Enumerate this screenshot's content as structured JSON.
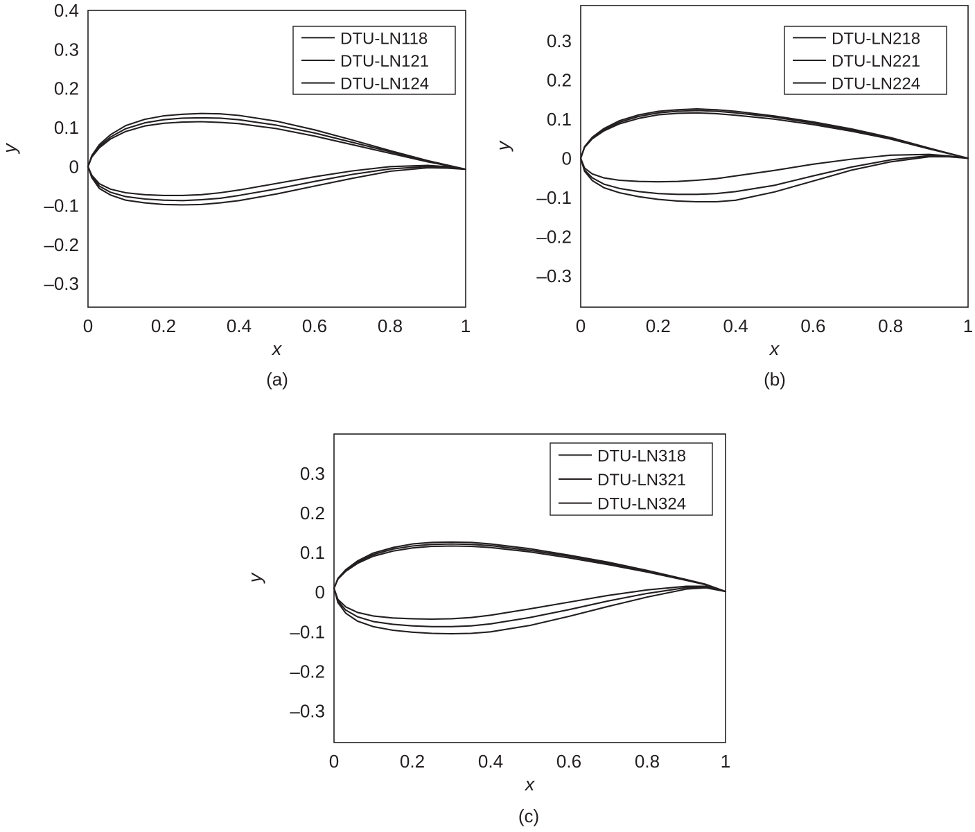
{
  "chart_data": [
    {
      "type": "line",
      "panel": "(a)",
      "xlabel": "x",
      "ylabel": "y",
      "xlim": [
        0,
        1
      ],
      "ylim": [
        -0.36,
        0.4
      ],
      "xticks": [
        "0",
        "0.2",
        "0.4",
        "0.6",
        "0.8",
        "1"
      ],
      "yticks": [
        "0.4",
        "0.3",
        "0.2",
        "0.1",
        "0",
        "–0.1",
        "–0.2",
        "–0.3"
      ],
      "legend_position": "top-right",
      "series": [
        {
          "name": "DTU-LN118",
          "x": [
            0,
            0.01,
            0.03,
            0.06,
            0.1,
            0.15,
            0.2,
            0.25,
            0.3,
            0.35,
            0.4,
            0.5,
            0.6,
            0.7,
            0.8,
            0.9,
            0.95,
            1
          ],
          "upper": [
            0,
            0.024,
            0.048,
            0.071,
            0.09,
            0.104,
            0.111,
            0.114,
            0.115,
            0.113,
            0.11,
            0.097,
            0.078,
            0.056,
            0.034,
            0.012,
            0.003,
            -0.007
          ],
          "lower": [
            0,
            -0.022,
            -0.044,
            -0.058,
            -0.067,
            -0.072,
            -0.074,
            -0.074,
            -0.072,
            -0.067,
            -0.06,
            -0.043,
            -0.026,
            -0.011,
            0.0,
            0.003,
            0.0,
            -0.007
          ]
        },
        {
          "name": "DTU-LN121",
          "x": [
            0,
            0.01,
            0.03,
            0.06,
            0.1,
            0.15,
            0.2,
            0.25,
            0.3,
            0.35,
            0.4,
            0.5,
            0.6,
            0.7,
            0.8,
            0.9,
            0.95,
            1
          ],
          "upper": [
            0,
            0.026,
            0.052,
            0.076,
            0.097,
            0.112,
            0.12,
            0.124,
            0.125,
            0.124,
            0.12,
            0.106,
            0.086,
            0.062,
            0.038,
            0.014,
            0.004,
            -0.007
          ],
          "lower": [
            0,
            -0.025,
            -0.05,
            -0.066,
            -0.077,
            -0.083,
            -0.086,
            -0.087,
            -0.085,
            -0.081,
            -0.074,
            -0.057,
            -0.038,
            -0.02,
            -0.006,
            0.0,
            -0.002,
            -0.007
          ]
        },
        {
          "name": "DTU-LN124",
          "x": [
            0,
            0.01,
            0.03,
            0.06,
            0.1,
            0.15,
            0.2,
            0.25,
            0.3,
            0.35,
            0.4,
            0.5,
            0.6,
            0.7,
            0.8,
            0.9,
            0.95,
            1
          ],
          "upper": [
            0,
            0.028,
            0.056,
            0.082,
            0.105,
            0.121,
            0.13,
            0.134,
            0.136,
            0.135,
            0.131,
            0.116,
            0.094,
            0.068,
            0.041,
            0.015,
            0.004,
            -0.007
          ],
          "lower": [
            0,
            -0.028,
            -0.056,
            -0.073,
            -0.086,
            -0.093,
            -0.097,
            -0.098,
            -0.097,
            -0.093,
            -0.087,
            -0.07,
            -0.05,
            -0.03,
            -0.012,
            -0.003,
            -0.004,
            -0.007
          ]
        }
      ]
    },
    {
      "type": "line",
      "panel": "(b)",
      "xlabel": "x",
      "ylabel": "y",
      "xlim": [
        0,
        1
      ],
      "ylim": [
        -0.38,
        0.39
      ],
      "xticks": [
        "0",
        "0.2",
        "0.4",
        "0.6",
        "0.8",
        "1"
      ],
      "yticks": [
        "0.3",
        "0.2",
        "0.1",
        "0",
        "–0.1",
        "–0.2",
        "–0.3"
      ],
      "legend_position": "top-right",
      "series": [
        {
          "name": "DTU-LN218",
          "x": [
            0,
            0.01,
            0.03,
            0.06,
            0.1,
            0.15,
            0.2,
            0.25,
            0.3,
            0.35,
            0.4,
            0.5,
            0.6,
            0.7,
            0.8,
            0.9,
            0.95,
            1
          ],
          "upper": [
            0,
            0.028,
            0.05,
            0.07,
            0.088,
            0.102,
            0.111,
            0.115,
            0.116,
            0.114,
            0.11,
            0.1,
            0.086,
            0.069,
            0.049,
            0.024,
            0.012,
            0
          ],
          "lower": [
            0,
            -0.025,
            -0.04,
            -0.05,
            -0.056,
            -0.059,
            -0.06,
            -0.059,
            -0.056,
            -0.052,
            -0.045,
            -0.031,
            -0.015,
            -0.002,
            0.008,
            0.01,
            0.006,
            0
          ]
        },
        {
          "name": "DTU-LN221",
          "x": [
            0,
            0.01,
            0.03,
            0.06,
            0.1,
            0.15,
            0.2,
            0.25,
            0.3,
            0.35,
            0.4,
            0.5,
            0.6,
            0.7,
            0.8,
            0.9,
            0.95,
            1
          ],
          "upper": [
            0,
            0.029,
            0.052,
            0.073,
            0.092,
            0.107,
            0.116,
            0.12,
            0.122,
            0.12,
            0.116,
            0.105,
            0.09,
            0.072,
            0.051,
            0.025,
            0.012,
            0
          ],
          "lower": [
            0,
            -0.03,
            -0.05,
            -0.066,
            -0.077,
            -0.085,
            -0.09,
            -0.092,
            -0.092,
            -0.09,
            -0.085,
            -0.069,
            -0.045,
            -0.022,
            -0.004,
            0.007,
            0.005,
            0
          ]
        },
        {
          "name": "DTU-LN224",
          "x": [
            0,
            0.01,
            0.03,
            0.06,
            0.1,
            0.15,
            0.2,
            0.25,
            0.3,
            0.35,
            0.4,
            0.5,
            0.6,
            0.7,
            0.8,
            0.9,
            0.95,
            1
          ],
          "upper": [
            0,
            0.03,
            0.054,
            0.076,
            0.096,
            0.111,
            0.12,
            0.124,
            0.126,
            0.124,
            0.12,
            0.108,
            0.093,
            0.075,
            0.053,
            0.026,
            0.013,
            0
          ],
          "lower": [
            0,
            -0.033,
            -0.057,
            -0.075,
            -0.088,
            -0.098,
            -0.105,
            -0.109,
            -0.111,
            -0.111,
            -0.107,
            -0.086,
            -0.058,
            -0.03,
            -0.009,
            0.004,
            0.004,
            0
          ]
        }
      ]
    },
    {
      "type": "line",
      "panel": "(c)",
      "xlabel": "x",
      "ylabel": "y",
      "xlim": [
        0,
        1
      ],
      "ylim": [
        -0.38,
        0.4
      ],
      "xticks": [
        "0",
        "0.2",
        "0.4",
        "0.6",
        "0.8",
        "1"
      ],
      "yticks": [
        "0.3",
        "0.2",
        "0.1",
        "0",
        "–0.1",
        "–0.2",
        "–0.3"
      ],
      "legend_position": "top-right",
      "series": [
        {
          "name": "DTU-LN318",
          "x": [
            0,
            0.01,
            0.03,
            0.06,
            0.1,
            0.15,
            0.2,
            0.25,
            0.3,
            0.35,
            0.4,
            0.5,
            0.6,
            0.7,
            0.8,
            0.9,
            0.95,
            1
          ],
          "upper": [
            0.01,
            0.033,
            0.053,
            0.073,
            0.091,
            0.104,
            0.112,
            0.116,
            0.117,
            0.116,
            0.113,
            0.102,
            0.087,
            0.07,
            0.051,
            0.03,
            0.019,
            0.002
          ],
          "lower": [
            0.01,
            -0.018,
            -0.037,
            -0.051,
            -0.06,
            -0.065,
            -0.067,
            -0.068,
            -0.067,
            -0.064,
            -0.058,
            -0.042,
            -0.025,
            -0.008,
            0.006,
            0.015,
            0.015,
            0.002
          ]
        },
        {
          "name": "DTU-LN321",
          "x": [
            0,
            0.01,
            0.03,
            0.06,
            0.1,
            0.15,
            0.2,
            0.25,
            0.3,
            0.35,
            0.4,
            0.5,
            0.6,
            0.7,
            0.8,
            0.9,
            0.95,
            1
          ],
          "upper": [
            0.01,
            0.034,
            0.055,
            0.076,
            0.095,
            0.109,
            0.117,
            0.121,
            0.122,
            0.121,
            0.118,
            0.106,
            0.091,
            0.073,
            0.053,
            0.031,
            0.019,
            0.002
          ],
          "lower": [
            0.01,
            -0.022,
            -0.045,
            -0.062,
            -0.074,
            -0.081,
            -0.085,
            -0.087,
            -0.087,
            -0.085,
            -0.08,
            -0.064,
            -0.044,
            -0.022,
            -0.003,
            0.012,
            0.013,
            0.002
          ]
        },
        {
          "name": "DTU-LN324",
          "x": [
            0,
            0.01,
            0.03,
            0.06,
            0.1,
            0.15,
            0.2,
            0.25,
            0.3,
            0.35,
            0.4,
            0.5,
            0.6,
            0.7,
            0.8,
            0.9,
            0.95,
            1
          ],
          "upper": [
            0.01,
            0.035,
            0.057,
            0.079,
            0.099,
            0.113,
            0.122,
            0.126,
            0.127,
            0.126,
            0.122,
            0.11,
            0.094,
            0.076,
            0.055,
            0.032,
            0.02,
            0.002
          ],
          "lower": [
            0.01,
            -0.026,
            -0.053,
            -0.073,
            -0.087,
            -0.096,
            -0.101,
            -0.104,
            -0.105,
            -0.104,
            -0.1,
            -0.084,
            -0.061,
            -0.036,
            -0.012,
            0.008,
            0.011,
            0.002
          ]
        }
      ]
    }
  ]
}
